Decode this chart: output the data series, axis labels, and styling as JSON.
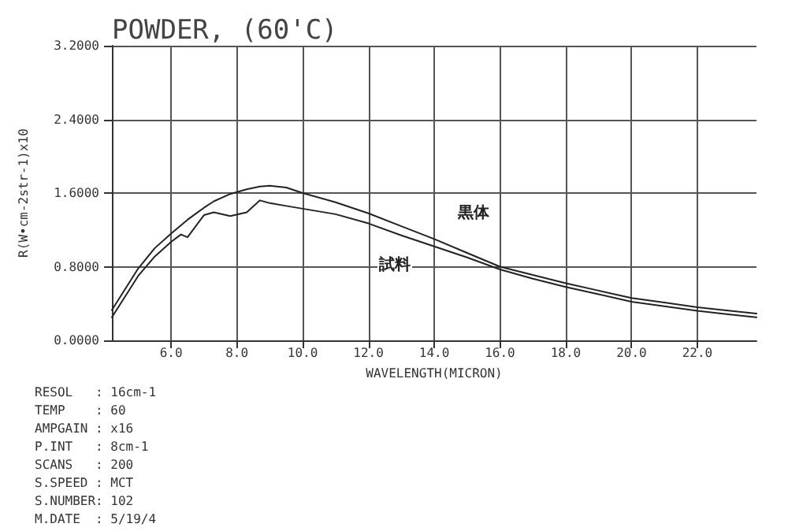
{
  "chart_data": {
    "type": "line",
    "title": "POWDER, (60'C)",
    "xlabel": "WAVELENGTH(MICRON)",
    "ylabel": "R(W•cm-2str-1)x10",
    "x": [
      4.2,
      5,
      5.5,
      6,
      6.3,
      6.5,
      7,
      7.3,
      7.8,
      8.3,
      8.7,
      9,
      9.5,
      10,
      11,
      12,
      13,
      14,
      15,
      16,
      17,
      18,
      19,
      20,
      21,
      22,
      23,
      23.8
    ],
    "series": [
      {
        "name": "黒体",
        "color": "#222222",
        "values": [
          0.33,
          0.78,
          1.0,
          1.16,
          1.25,
          1.31,
          1.44,
          1.51,
          1.59,
          1.64,
          1.67,
          1.68,
          1.66,
          1.6,
          1.5,
          1.38,
          1.24,
          1.1,
          0.95,
          0.8,
          0.71,
          0.62,
          0.54,
          0.46,
          0.41,
          0.36,
          0.32,
          0.29
        ]
      },
      {
        "name": "試料",
        "color": "#222222",
        "values": [
          0.25,
          0.7,
          0.91,
          1.07,
          1.15,
          1.12,
          1.36,
          1.39,
          1.35,
          1.39,
          1.52,
          1.49,
          1.46,
          1.43,
          1.37,
          1.27,
          1.14,
          1.02,
          0.9,
          0.77,
          0.67,
          0.58,
          0.5,
          0.42,
          0.37,
          0.32,
          0.28,
          0.25
        ]
      }
    ],
    "xlim": [
      4.2,
      23.8
    ],
    "ylim": [
      0,
      3.2
    ],
    "xticks": [
      {
        "value": 6,
        "label": "6.0"
      },
      {
        "value": 8,
        "label": "8.0"
      },
      {
        "value": 10,
        "label": "10.0"
      },
      {
        "value": 12,
        "label": "12.0"
      },
      {
        "value": 14,
        "label": "14.0"
      },
      {
        "value": 16,
        "label": "16.0"
      },
      {
        "value": 18,
        "label": "18.0"
      },
      {
        "value": 20,
        "label": "20.0"
      },
      {
        "value": 22,
        "label": "22.0"
      }
    ],
    "yticks": [
      {
        "value": 0,
        "label": "0.0000"
      },
      {
        "value": 0.8,
        "label": "0.8000"
      },
      {
        "value": 1.6,
        "label": "1.6000"
      },
      {
        "value": 2.4,
        "label": "2.4000"
      },
      {
        "value": 3.2,
        "label": "3.2000"
      }
    ],
    "grid": true,
    "legend": false,
    "marker": "none",
    "line_style": "solid",
    "annotations": [
      "RESOL   : 16cm-1",
      "TEMP    : 60",
      "AMPGAIN : x16",
      "P.INT   : 8cm-1",
      "SCANS   : 200",
      "S.SPEED : MCT",
      "S.NUMBER: 102",
      "M.DATE  : 5/19/4"
    ]
  }
}
